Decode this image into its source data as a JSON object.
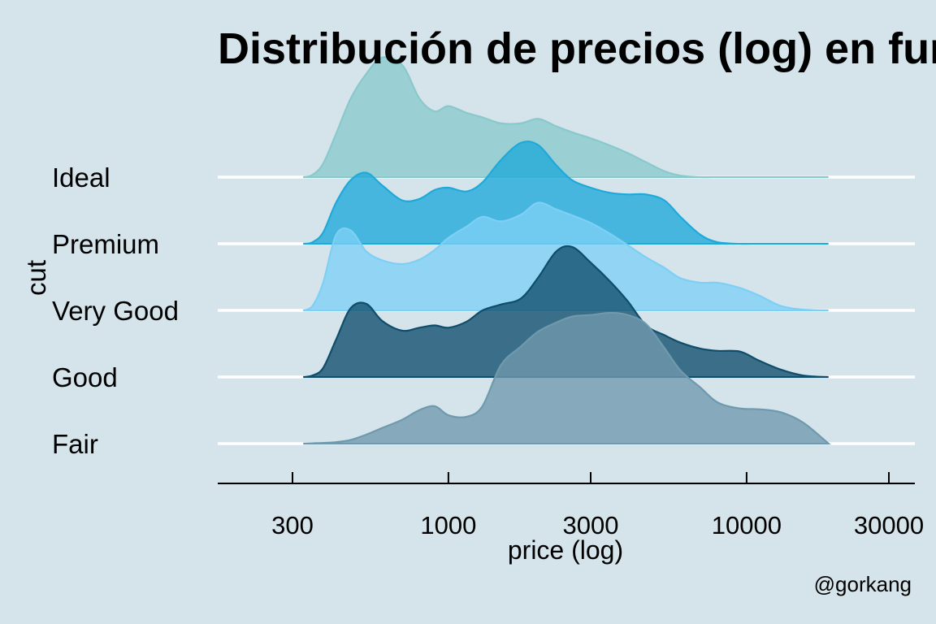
{
  "chart_data": {
    "type": "ridgeline",
    "title": "Distribución de precios (log) en función del corte",
    "xlabel": "price (log)",
    "ylabel": "cut",
    "caption": "@gorkang",
    "x_scale": "log10",
    "xlim": [
      326,
      18823
    ],
    "x_ticks": [
      "300",
      "1000",
      "3000",
      "10000",
      "30000"
    ],
    "x_tick_values": [
      300,
      1000,
      3000,
      10000,
      30000
    ],
    "grid": false,
    "legend": "none",
    "x_grid": [
      326,
      350,
      380,
      420,
      470,
      530,
      600,
      700,
      800,
      900,
      1000,
      1150,
      1300,
      1500,
      1750,
      2000,
      2300,
      2600,
      3000,
      3500,
      4000,
      4600,
      5300,
      6000,
      7000,
      8000,
      9500,
      11000,
      13000,
      15500,
      18823
    ],
    "series": [
      {
        "name": "Fair",
        "color": "#6f99ad",
        "values": [
          0.0,
          0.005,
          0.01,
          0.02,
          0.05,
          0.12,
          0.21,
          0.32,
          0.45,
          0.5,
          0.38,
          0.36,
          0.5,
          1.05,
          1.3,
          1.5,
          1.62,
          1.7,
          1.72,
          1.75,
          1.72,
          1.6,
          1.28,
          0.98,
          0.75,
          0.55,
          0.47,
          0.46,
          0.42,
          0.28,
          0.0
        ]
      },
      {
        "name": "Good",
        "color": "#0f4d6b",
        "values": [
          0.0,
          0.02,
          0.12,
          0.5,
          0.92,
          0.98,
          0.75,
          0.62,
          0.66,
          0.69,
          0.66,
          0.74,
          0.89,
          0.97,
          1.05,
          1.33,
          1.68,
          1.74,
          1.53,
          1.27,
          1.01,
          0.69,
          0.56,
          0.46,
          0.38,
          0.35,
          0.34,
          0.22,
          0.1,
          0.02,
          0.0
        ]
      },
      {
        "name": "Very Good",
        "color": "#7ecff5",
        "values": [
          0.0,
          0.06,
          0.37,
          1.01,
          1.07,
          0.79,
          0.67,
          0.62,
          0.68,
          0.81,
          0.97,
          1.12,
          1.25,
          1.19,
          1.28,
          1.44,
          1.35,
          1.27,
          1.17,
          1.02,
          0.87,
          0.71,
          0.57,
          0.43,
          0.37,
          0.37,
          0.3,
          0.2,
          0.06,
          0.01,
          0.0
        ]
      },
      {
        "name": "Premium",
        "color": "#1fa9da",
        "values": [
          0.0,
          0.02,
          0.15,
          0.55,
          0.85,
          0.95,
          0.78,
          0.58,
          0.6,
          0.72,
          0.75,
          0.7,
          0.82,
          1.12,
          1.35,
          1.32,
          1.05,
          0.85,
          0.75,
          0.68,
          0.66,
          0.66,
          0.58,
          0.36,
          0.12,
          0.02,
          0.0,
          0.0,
          0.0,
          0.0,
          0.0
        ]
      },
      {
        "name": "Ideal",
        "color": "#89c9cc",
        "values": [
          0.0,
          0.03,
          0.18,
          0.58,
          1.05,
          1.38,
          1.6,
          1.5,
          1.05,
          0.88,
          0.95,
          0.86,
          0.8,
          0.72,
          0.72,
          0.78,
          0.68,
          0.6,
          0.52,
          0.42,
          0.32,
          0.2,
          0.08,
          0.02,
          0.0,
          0.0,
          0.0,
          0.0,
          0.0,
          0.0,
          0.0
        ]
      }
    ]
  }
}
